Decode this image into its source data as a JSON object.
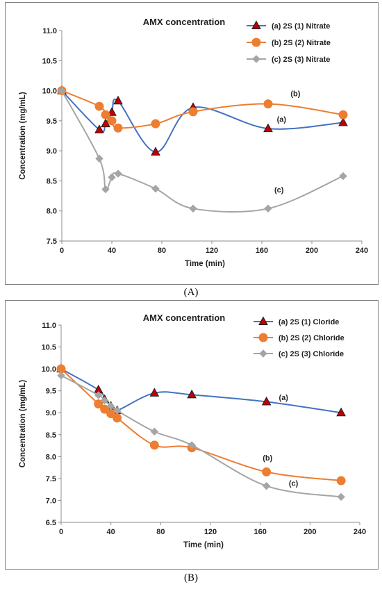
{
  "captions": [
    "(A)",
    "(B)"
  ],
  "chart_data": [
    {
      "type": "line",
      "title": "AMX concentration",
      "xlabel": "Time (min)",
      "ylabel": "Concentration (mg/mL)",
      "xlim": [
        0,
        240
      ],
      "ylim": [
        7.5,
        11.0
      ],
      "xticks": [
        0,
        40,
        80,
        120,
        160,
        200,
        240
      ],
      "yticks": [
        7.5,
        8.0,
        8.5,
        9.0,
        9.5,
        10.0,
        10.5,
        11.0
      ],
      "ytick_labels": [
        "7.5",
        "8.0",
        "8.5",
        "9.0",
        "9.5",
        "10.0",
        "10.5",
        "11.0"
      ],
      "legend_position": "top-right",
      "grid": false,
      "series": [
        {
          "name": "(a) 2S (1)  Nitrate",
          "marker": "triangle",
          "color": "#4472c4",
          "marker_fill": "#c00000",
          "annotation": "(a)",
          "annotation_at": [
            172,
            9.48
          ],
          "x": [
            0,
            30,
            35,
            40,
            45,
            75,
            105,
            165,
            225
          ],
          "y": [
            10.0,
            9.35,
            9.45,
            9.64,
            9.83,
            8.98,
            9.72,
            9.37,
            9.47
          ]
        },
        {
          "name": "(b) 2S (2) Nitrate",
          "marker": "circle",
          "color": "#ed7d31",
          "marker_fill": "#ed7d31",
          "annotation": "(b)",
          "annotation_at": [
            183,
            9.91
          ],
          "x": [
            0,
            30,
            35,
            40,
            45,
            75,
            105,
            165,
            225
          ],
          "y": [
            10.0,
            9.74,
            9.6,
            9.5,
            9.38,
            9.45,
            9.65,
            9.78,
            9.6
          ]
        },
        {
          "name": "(c) 2S (3) Nitrate",
          "marker": "diamond",
          "color": "#a5a5a5",
          "marker_fill": "#a5a5a5",
          "annotation": "(c)",
          "annotation_at": [
            170,
            8.31
          ],
          "x": [
            0,
            30,
            35,
            40,
            45,
            75,
            105,
            165,
            225
          ],
          "y": [
            10.0,
            8.87,
            8.36,
            8.56,
            8.62,
            8.37,
            8.04,
            8.04,
            8.58
          ]
        }
      ]
    },
    {
      "type": "line",
      "title": "AMX concentration",
      "xlabel": "Time (min)",
      "ylabel": "Concentration (mg/mL)",
      "xlim": [
        0,
        240
      ],
      "ylim": [
        6.5,
        11.0
      ],
      "xticks": [
        0,
        40,
        80,
        120,
        160,
        200,
        240
      ],
      "yticks": [
        6.5,
        7.0,
        7.5,
        8.0,
        8.5,
        9.0,
        9.5,
        10.0,
        10.5,
        11.0
      ],
      "ytick_labels": [
        "6.5",
        "7.0",
        "7.5",
        "8.0",
        "8.5",
        "9.0",
        "9.5",
        "10.0",
        "10.5",
        "11.0"
      ],
      "legend_position": "top-right",
      "grid": false,
      "series": [
        {
          "name": "(a) 2S (1)  Cloride",
          "marker": "triangle",
          "color": "#4472c4",
          "marker_fill": "#c00000",
          "annotation": "(a)",
          "annotation_at": [
            175,
            9.29
          ],
          "x": [
            0,
            30,
            35,
            40,
            45,
            75,
            105,
            165,
            225
          ],
          "y": [
            10.0,
            9.52,
            9.3,
            9.15,
            9.05,
            9.45,
            9.41,
            9.25,
            9.0
          ]
        },
        {
          "name": "(b) 2S (2) Chloride",
          "marker": "circle",
          "color": "#ed7d31",
          "marker_fill": "#ed7d31",
          "annotation": "(b)",
          "annotation_at": [
            162,
            7.91
          ],
          "x": [
            0,
            30,
            35,
            40,
            45,
            75,
            105,
            165,
            225
          ],
          "y": [
            10.0,
            9.2,
            9.08,
            8.98,
            8.88,
            8.26,
            8.2,
            7.65,
            7.45
          ]
        },
        {
          "name": "(c) 2S (3) Chloride",
          "marker": "diamond",
          "color": "#a5a5a5",
          "marker_fill": "#a5a5a5",
          "annotation": "(c)",
          "annotation_at": [
            183,
            7.33
          ],
          "x": [
            0,
            30,
            35,
            40,
            45,
            75,
            105,
            165,
            225
          ],
          "y": [
            9.85,
            9.4,
            9.28,
            9.15,
            9.05,
            8.57,
            8.26,
            7.33,
            7.08
          ]
        }
      ]
    }
  ]
}
